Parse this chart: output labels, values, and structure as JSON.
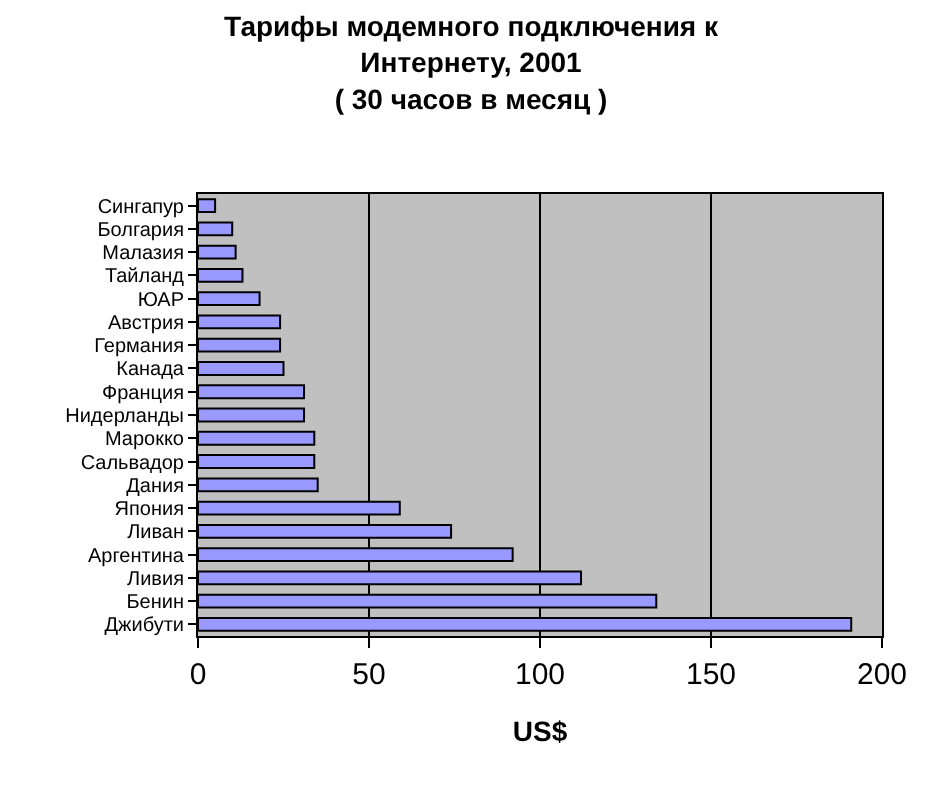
{
  "chart_data": {
    "type": "bar",
    "orientation": "horizontal",
    "title": "Тарифы модемного подключения к\nИнтернету, 2001\n( 30 часов в месяц )",
    "xlabel": "US$",
    "categories": [
      "Сингапур",
      "Болгария",
      "Малазия",
      "Тайланд",
      "ЮАР",
      "Австрия",
      "Германия",
      "Канада",
      "Франция",
      "Нидерланды",
      "Марокко",
      "Сальвадор",
      "Дания",
      "Япония",
      "Ливан",
      "Аргентина",
      "Ливия",
      "Бенин",
      "Джибути"
    ],
    "values": [
      5,
      10,
      11,
      13,
      18,
      24,
      24,
      25,
      31,
      31,
      34,
      34,
      35,
      59,
      74,
      92,
      112,
      134,
      191
    ],
    "color": "#9999ff",
    "xlim": [
      0,
      200
    ],
    "xticks": [
      0,
      50,
      100,
      150,
      200
    ],
    "grid": "x",
    "legend": false
  }
}
